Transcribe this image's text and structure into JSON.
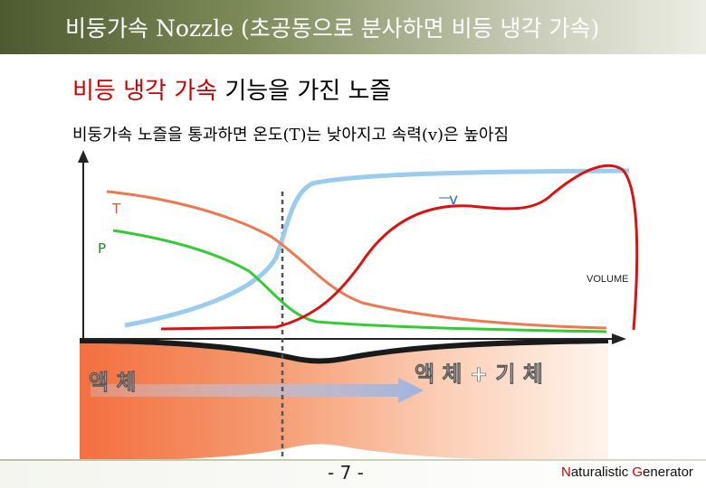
{
  "slide": {
    "title": "비둥가속 Nozzle (초공동으로 분사하면 비등 냉각 가속)",
    "subheading_red": "비등 냉각 가속",
    "subheading_rest": " 기능을 가진 노즐",
    "body_text": "비둥가속 노즐을 통과하면 온도(T)는 낮아지고 속력(v)은 높아짐",
    "page_number": "- 7 -"
  },
  "diagram": {
    "label_T": "T",
    "label_P": "P",
    "label_v": "v",
    "label_volume": "VOLUME",
    "label_liquid": "액 체",
    "label_liquid_gas": "액 체 + 기 체"
  },
  "footer": {
    "brand_accent_1": "N",
    "brand_text_1": "aturalistic ",
    "brand_accent_2": "G",
    "brand_text_2": "enerator"
  },
  "colors": {
    "temperature_curve": "#f07850",
    "pressure_curve": "#33cc33",
    "velocity_curve": "#99ccee",
    "volume_curve": "#dd1111",
    "liquid_fill": "#f47a4a"
  }
}
